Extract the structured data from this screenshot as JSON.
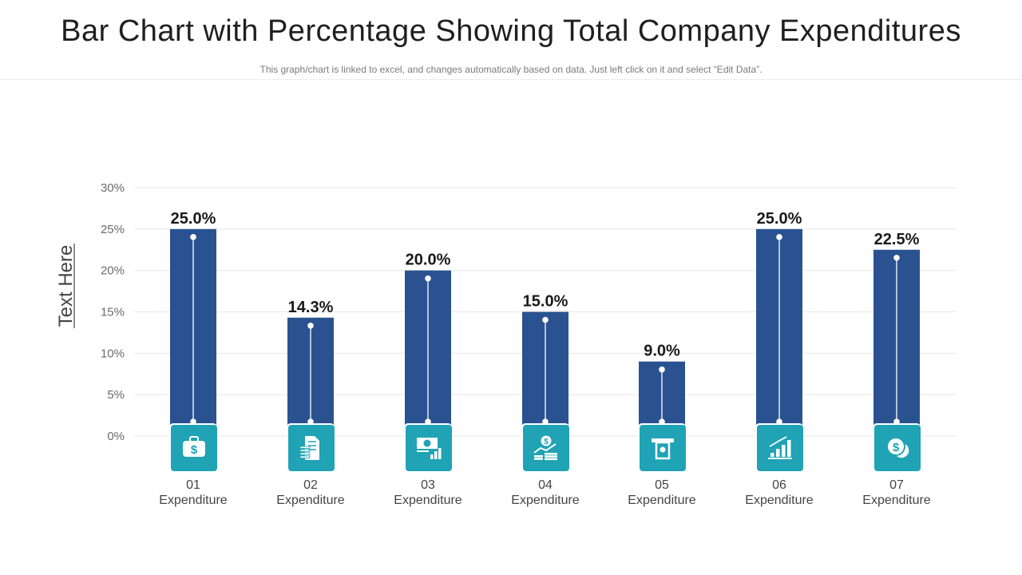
{
  "header": {
    "title": "Bar Chart with Percentage Showing Total Company Expenditures",
    "subtitle": "This graph/chart is linked to excel, and changes automatically based on data. Just left click on it and select “Edit Data”."
  },
  "colors": {
    "bar": "#2a5291",
    "icon_tile": "#1fa3b5",
    "grid": "#e8e8e8"
  },
  "chart_data": {
    "type": "bar",
    "title": "Bar Chart with Percentage Showing Total Company Expenditures",
    "ylabel": "Text Here",
    "xlabel": "",
    "ylim": [
      0,
      30
    ],
    "yticks": [
      "0%",
      "5%",
      "10%",
      "15%",
      "20%",
      "25%",
      "30%"
    ],
    "categories": [
      {
        "num": "01",
        "name": "Expenditure"
      },
      {
        "num": "02",
        "name": "Expenditure"
      },
      {
        "num": "03",
        "name": "Expenditure"
      },
      {
        "num": "04",
        "name": "Expenditure"
      },
      {
        "num": "05",
        "name": "Expenditure"
      },
      {
        "num": "06",
        "name": "Expenditure"
      },
      {
        "num": "07",
        "name": "Expenditure"
      }
    ],
    "values": [
      25.0,
      14.3,
      20.0,
      15.0,
      9.0,
      25.0,
      22.5
    ],
    "labels": [
      "25.0%",
      "14.3%",
      "20.0%",
      "15.0%",
      "9.0%",
      "25.0%",
      "22.5%"
    ],
    "icons": [
      "money-bag-icon",
      "document-money-icon",
      "banknote-chart-icon",
      "coins-growth-icon",
      "atm-cash-icon",
      "bar-growth-icon",
      "coins-stack-icon"
    ]
  }
}
